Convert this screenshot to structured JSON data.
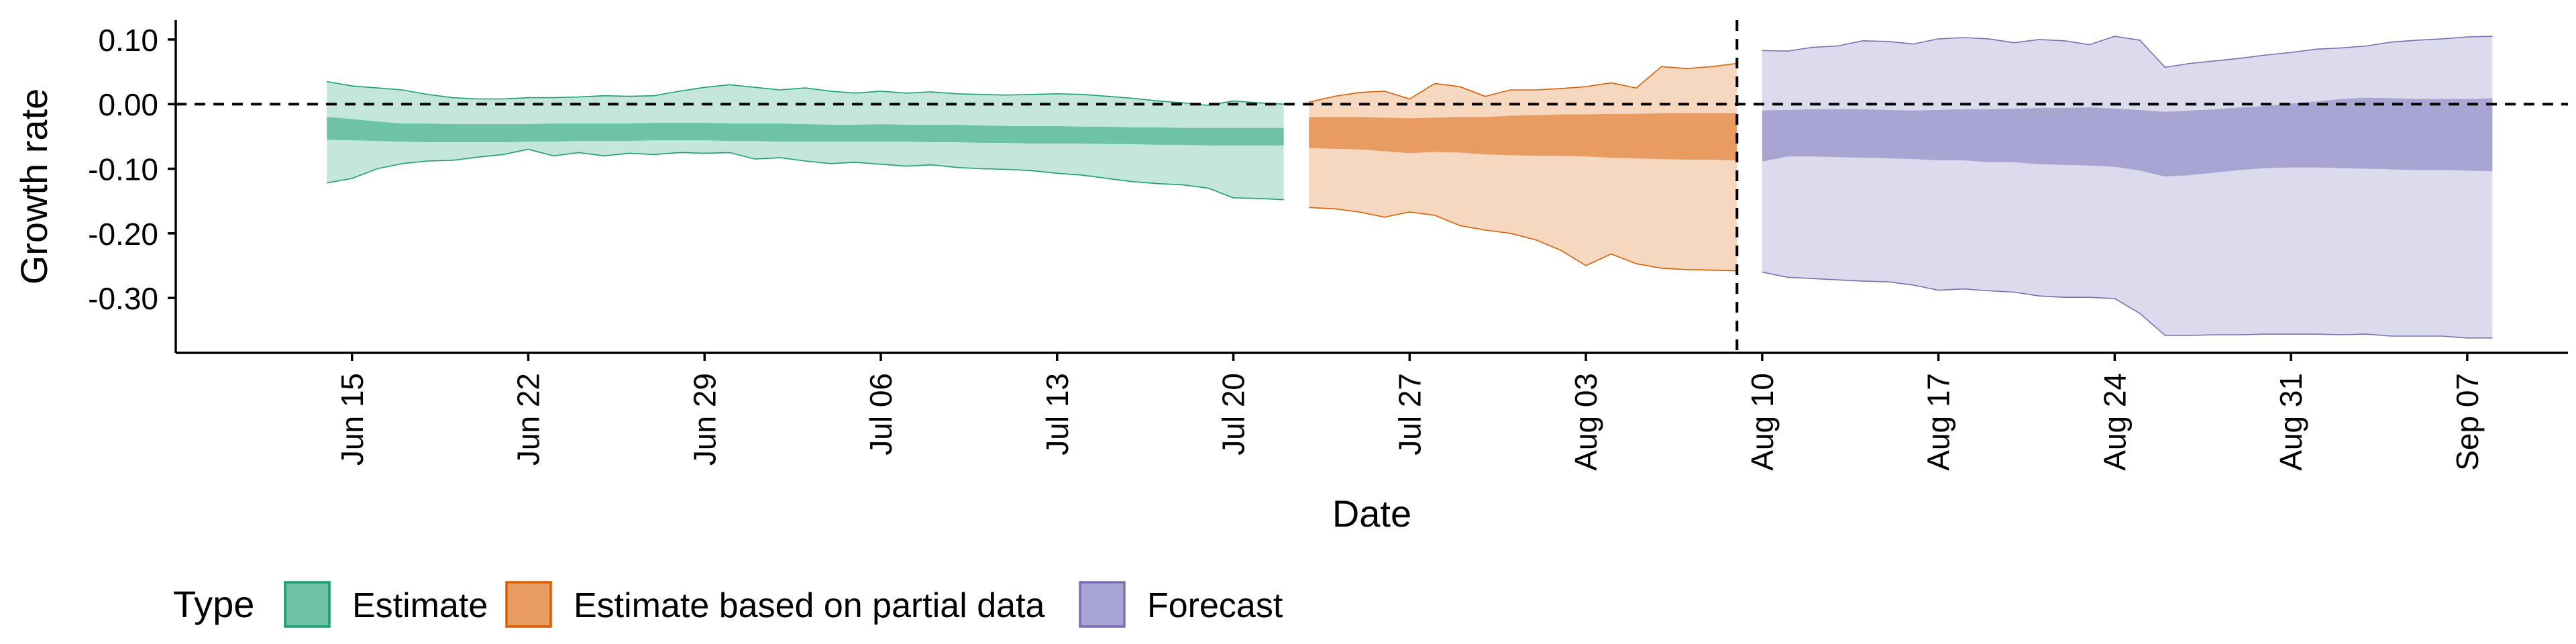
{
  "chart_data": {
    "type": "area",
    "xlabel": "Date",
    "ylabel": "Growth rate",
    "xlim": [
      "2021-06-08",
      "2021-09-11"
    ],
    "ylim": [
      -0.385,
      0.13
    ],
    "y_ticks": [
      0.1,
      0.0,
      -0.1,
      -0.2,
      -0.3
    ],
    "y_tick_labels": [
      "0.10",
      "0.00",
      "-0.10",
      "-0.20",
      "-0.30"
    ],
    "x_ticks": [
      "2021-06-15",
      "2021-06-22",
      "2021-06-29",
      "2021-07-06",
      "2021-07-13",
      "2021-07-20",
      "2021-07-27",
      "2021-08-03",
      "2021-08-10",
      "2021-08-17",
      "2021-08-24",
      "2021-08-31",
      "2021-09-07"
    ],
    "x_tick_labels": [
      "Jun 15",
      "Jun 22",
      "Jun 29",
      "Jul 06",
      "Jul 13",
      "Jul 20",
      "Jul 27",
      "Aug 03",
      "Aug 10",
      "Aug 17",
      "Aug 24",
      "Aug 31",
      "Sep 07"
    ],
    "reference_lines": {
      "horizontal_y": 0.0,
      "vertical_date": "2021-08-09"
    },
    "grid": false,
    "legend": {
      "title": "Type",
      "position": "bottom-left"
    },
    "series": [
      {
        "name": "Estimate",
        "color": "#1b9e77",
        "fill_color": "#6ec3a6",
        "dates": [
          "2021-06-14",
          "2021-06-15",
          "2021-06-16",
          "2021-06-17",
          "2021-06-18",
          "2021-06-19",
          "2021-06-20",
          "2021-06-21",
          "2021-06-22",
          "2021-06-23",
          "2021-06-24",
          "2021-06-25",
          "2021-06-26",
          "2021-06-27",
          "2021-06-28",
          "2021-06-29",
          "2021-06-30",
          "2021-07-01",
          "2021-07-02",
          "2021-07-03",
          "2021-07-04",
          "2021-07-05",
          "2021-07-06",
          "2021-07-07",
          "2021-07-08",
          "2021-07-09",
          "2021-07-10",
          "2021-07-11",
          "2021-07-12",
          "2021-07-13",
          "2021-07-14",
          "2021-07-15",
          "2021-07-16",
          "2021-07-17",
          "2021-07-18",
          "2021-07-19",
          "2021-07-20",
          "2021-07-21",
          "2021-07-22"
        ],
        "outer_upper": [
          0.035,
          0.028,
          0.025,
          0.022,
          0.015,
          0.01,
          0.008,
          0.008,
          0.01,
          0.01,
          0.011,
          0.013,
          0.012,
          0.013,
          0.02,
          0.026,
          0.03,
          0.026,
          0.022,
          0.025,
          0.02,
          0.017,
          0.02,
          0.017,
          0.019,
          0.016,
          0.015,
          0.014,
          0.015,
          0.016,
          0.015,
          0.012,
          0.009,
          0.005,
          0.002,
          -0.002,
          0.005,
          0.002,
          0.0
        ],
        "outer_lower": [
          -0.122,
          -0.115,
          -0.1,
          -0.092,
          -0.088,
          -0.087,
          -0.082,
          -0.078,
          -0.07,
          -0.08,
          -0.075,
          -0.08,
          -0.076,
          -0.078,
          -0.075,
          -0.076,
          -0.075,
          -0.085,
          -0.083,
          -0.088,
          -0.092,
          -0.09,
          -0.093,
          -0.096,
          -0.094,
          -0.098,
          -0.1,
          -0.101,
          -0.103,
          -0.107,
          -0.11,
          -0.115,
          -0.12,
          -0.123,
          -0.125,
          -0.13,
          -0.145,
          -0.146,
          -0.148
        ],
        "inner_upper": [
          -0.02,
          -0.023,
          -0.027,
          -0.03,
          -0.03,
          -0.031,
          -0.031,
          -0.031,
          -0.031,
          -0.03,
          -0.03,
          -0.03,
          -0.03,
          -0.029,
          -0.029,
          -0.029,
          -0.03,
          -0.03,
          -0.03,
          -0.031,
          -0.032,
          -0.032,
          -0.031,
          -0.032,
          -0.032,
          -0.032,
          -0.033,
          -0.034,
          -0.034,
          -0.034,
          -0.035,
          -0.035,
          -0.036,
          -0.036,
          -0.037,
          -0.037,
          -0.037,
          -0.037,
          -0.037
        ],
        "inner_lower": [
          -0.055,
          -0.056,
          -0.057,
          -0.058,
          -0.059,
          -0.059,
          -0.059,
          -0.059,
          -0.058,
          -0.058,
          -0.057,
          -0.057,
          -0.057,
          -0.056,
          -0.056,
          -0.056,
          -0.057,
          -0.057,
          -0.058,
          -0.058,
          -0.058,
          -0.058,
          -0.058,
          -0.058,
          -0.059,
          -0.059,
          -0.06,
          -0.06,
          -0.061,
          -0.061,
          -0.061,
          -0.062,
          -0.062,
          -0.063,
          -0.063,
          -0.064,
          -0.064,
          -0.064,
          -0.064
        ]
      },
      {
        "name": "Estimate based on partial data",
        "color": "#d95f02",
        "fill_color": "#e89c61",
        "dates": [
          "2021-07-23",
          "2021-07-24",
          "2021-07-25",
          "2021-07-26",
          "2021-07-27",
          "2021-07-28",
          "2021-07-29",
          "2021-07-30",
          "2021-07-31",
          "2021-08-01",
          "2021-08-02",
          "2021-08-03",
          "2021-08-04",
          "2021-08-05",
          "2021-08-06",
          "2021-08-07",
          "2021-08-08",
          "2021-08-09"
        ],
        "outer_upper": [
          0.003,
          0.012,
          0.018,
          0.02,
          0.008,
          0.032,
          0.027,
          0.012,
          0.022,
          0.022,
          0.024,
          0.027,
          0.033,
          0.025,
          0.058,
          0.055,
          0.058,
          0.063
        ],
        "outer_lower": [
          -0.16,
          -0.162,
          -0.167,
          -0.175,
          -0.167,
          -0.172,
          -0.188,
          -0.195,
          -0.2,
          -0.21,
          -0.226,
          -0.25,
          -0.232,
          -0.247,
          -0.254,
          -0.256,
          -0.257,
          -0.258
        ],
        "inner_upper": [
          -0.02,
          -0.02,
          -0.02,
          -0.021,
          -0.022,
          -0.021,
          -0.02,
          -0.02,
          -0.018,
          -0.017,
          -0.016,
          -0.016,
          -0.015,
          -0.015,
          -0.014,
          -0.014,
          -0.014,
          -0.014
        ],
        "inner_lower": [
          -0.068,
          -0.069,
          -0.07,
          -0.073,
          -0.076,
          -0.074,
          -0.075,
          -0.078,
          -0.079,
          -0.08,
          -0.08,
          -0.081,
          -0.083,
          -0.084,
          -0.085,
          -0.086,
          -0.086,
          -0.087
        ]
      },
      {
        "name": "Forecast",
        "color": "#7570b3",
        "fill_color": "#a8a5d2",
        "dates": [
          "2021-08-10",
          "2021-08-11",
          "2021-08-12",
          "2021-08-13",
          "2021-08-14",
          "2021-08-15",
          "2021-08-16",
          "2021-08-17",
          "2021-08-18",
          "2021-08-19",
          "2021-08-20",
          "2021-08-21",
          "2021-08-22",
          "2021-08-23",
          "2021-08-24",
          "2021-08-25",
          "2021-08-26",
          "2021-08-27",
          "2021-08-28",
          "2021-08-29",
          "2021-08-30",
          "2021-08-31",
          "2021-09-01",
          "2021-09-02",
          "2021-09-03",
          "2021-09-04",
          "2021-09-05",
          "2021-09-06",
          "2021-09-07",
          "2021-09-08"
        ],
        "outer_upper": [
          0.083,
          0.082,
          0.088,
          0.09,
          0.098,
          0.097,
          0.093,
          0.101,
          0.103,
          0.101,
          0.095,
          0.1,
          0.098,
          0.092,
          0.105,
          0.099,
          0.057,
          0.063,
          0.067,
          0.071,
          0.076,
          0.08,
          0.085,
          0.087,
          0.09,
          0.096,
          0.099,
          0.101,
          0.104,
          0.105
        ],
        "outer_lower": [
          -0.26,
          -0.268,
          -0.27,
          -0.272,
          -0.274,
          -0.275,
          -0.28,
          -0.288,
          -0.286,
          -0.289,
          -0.291,
          -0.297,
          -0.299,
          -0.299,
          -0.301,
          -0.324,
          -0.358,
          -0.358,
          -0.357,
          -0.357,
          -0.356,
          -0.356,
          -0.356,
          -0.357,
          -0.356,
          -0.359,
          -0.359,
          -0.359,
          -0.362,
          -0.362
        ],
        "inner_upper": [
          -0.01,
          -0.009,
          -0.008,
          -0.008,
          -0.008,
          -0.009,
          -0.01,
          -0.009,
          -0.008,
          -0.008,
          -0.007,
          -0.006,
          -0.006,
          -0.005,
          -0.007,
          -0.009,
          -0.012,
          -0.01,
          -0.008,
          -0.005,
          -0.003,
          0.001,
          0.004,
          0.008,
          0.01,
          0.009,
          0.008,
          0.008,
          0.008,
          0.009
        ],
        "inner_lower": [
          -0.089,
          -0.081,
          -0.081,
          -0.082,
          -0.083,
          -0.084,
          -0.085,
          -0.087,
          -0.087,
          -0.09,
          -0.09,
          -0.093,
          -0.094,
          -0.095,
          -0.097,
          -0.103,
          -0.112,
          -0.11,
          -0.106,
          -0.102,
          -0.099,
          -0.098,
          -0.098,
          -0.099,
          -0.1,
          -0.101,
          -0.102,
          -0.102,
          -0.103,
          -0.104
        ]
      }
    ]
  }
}
